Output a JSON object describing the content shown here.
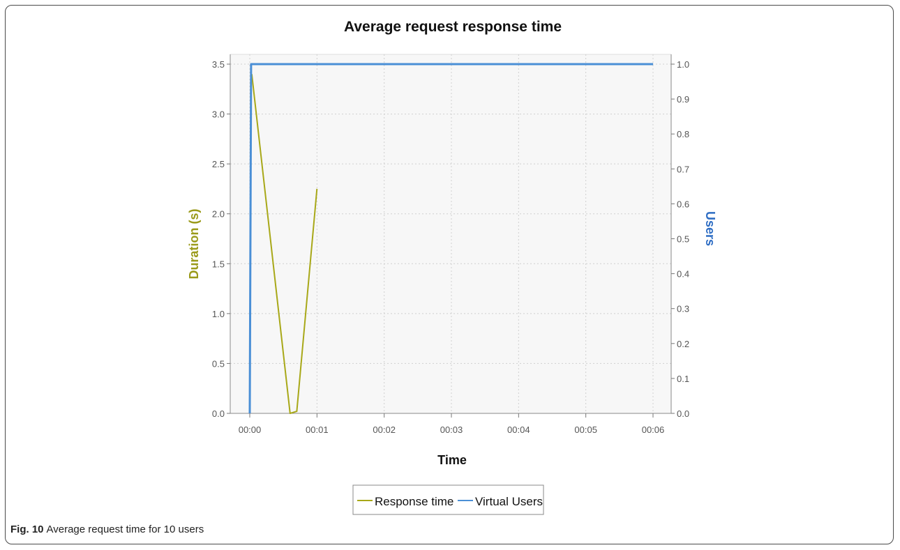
{
  "figure": {
    "caption_label": "Fig. 10",
    "caption_text": "Average request time for 10 users"
  },
  "chart_data": {
    "type": "line",
    "title": "Average  request response time",
    "xlabel": "Time",
    "ylabel_left": "Duration (s)",
    "ylabel_right": "Users",
    "x_ticks": [
      "00:00",
      "00:01",
      "00:02",
      "00:03",
      "00:04",
      "00:05",
      "00:06"
    ],
    "xlim": [
      "00:00",
      "00:06"
    ],
    "y_left_ticks": [
      "0.0",
      "0.5",
      "1.0",
      "1.5",
      "2.0",
      "2.5",
      "3.0",
      "3.5"
    ],
    "y_left_lim": [
      0,
      3.5
    ],
    "y_right_ticks": [
      "0.0",
      "0.1",
      "0.2",
      "0.3",
      "0.4",
      "0.5",
      "0.6",
      "0.7",
      "0.8",
      "0.9",
      "1.0"
    ],
    "y_right_lim": [
      0,
      1.0
    ],
    "grid": true,
    "legend_position": "bottom",
    "colors": {
      "response_time": "#a8a818",
      "virtual_users": "#4a8fd6",
      "ylabel_left": "#9a9a1a",
      "ylabel_right": "#2f6ec4"
    },
    "series": [
      {
        "name": "Response time",
        "axis": "left",
        "x": [
          "00:00.03",
          "00:00.6",
          "00:00.7",
          "00:01"
        ],
        "y": [
          3.4,
          0.0,
          0.02,
          2.25
        ]
      },
      {
        "name": "Virtual Users",
        "axis": "right",
        "x": [
          "00:00",
          "00:00.02",
          "00:06"
        ],
        "y": [
          0.0,
          1.0,
          1.0
        ]
      }
    ]
  }
}
